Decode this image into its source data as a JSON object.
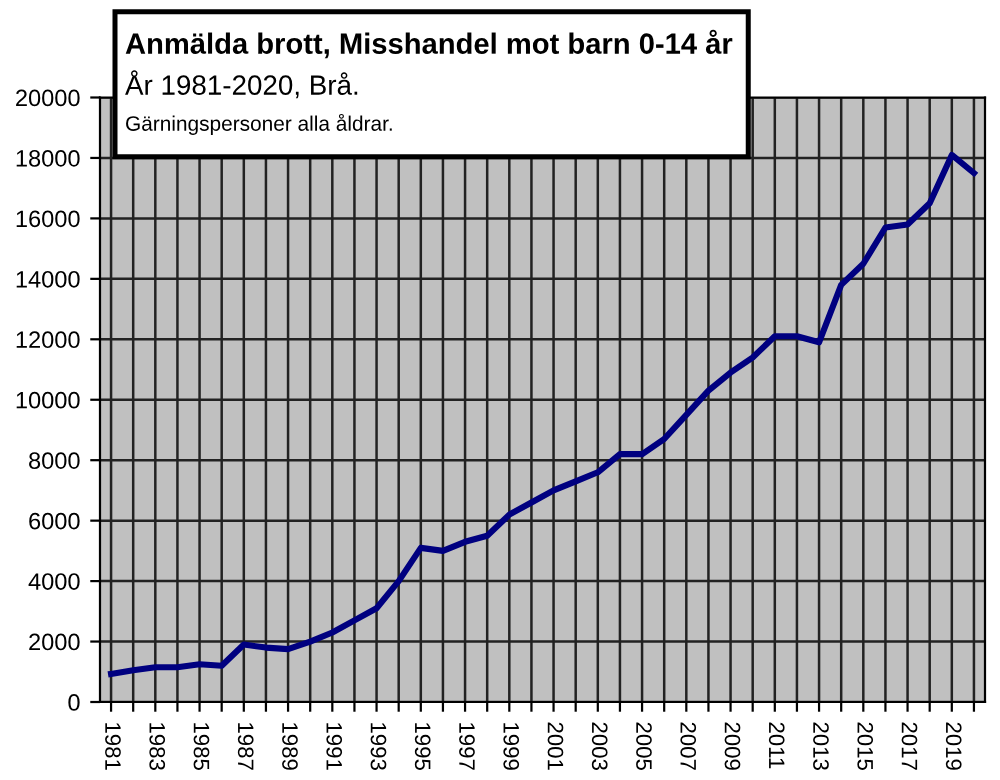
{
  "chart_data": {
    "type": "line",
    "title": "Anmälda brott, Misshandel mot barn 0-14 år",
    "subtitle": "År 1981-2020, Brå.",
    "annotations": [
      "Gärningspersoner alla åldrar."
    ],
    "categories": [
      "1981",
      null,
      "1983",
      null,
      "1985",
      null,
      "1987",
      null,
      "1989",
      null,
      "1991",
      null,
      "1993",
      null,
      "1995",
      null,
      "1997",
      null,
      "1999",
      null,
      "2001",
      null,
      "2003",
      null,
      "2005",
      null,
      "2007",
      null,
      "2009",
      null,
      "2011",
      null,
      "2013",
      null,
      "2015",
      null,
      "2017",
      null,
      "2019",
      null
    ],
    "series": [
      {
        "color": "#000080",
        "values": [
          930,
          1050,
          1150,
          1150,
          1250,
          1200,
          1900,
          1800,
          1750,
          2000,
          2300,
          2700,
          3100,
          4000,
          5100,
          5000,
          5300,
          5500,
          6200,
          6600,
          7000,
          7300,
          7600,
          8200,
          8200,
          8700,
          9500,
          10300,
          10900,
          11400,
          12100,
          12100,
          11900,
          13800,
          14500,
          15700,
          15800,
          16500,
          18100,
          17500
        ]
      }
    ],
    "ylim": [
      0,
      20000
    ],
    "yticks": [
      0,
      2000,
      4000,
      6000,
      8000,
      10000,
      12000,
      14000,
      16000,
      18000,
      20000
    ],
    "grid": true,
    "marker": "none",
    "line_style": "solid"
  }
}
